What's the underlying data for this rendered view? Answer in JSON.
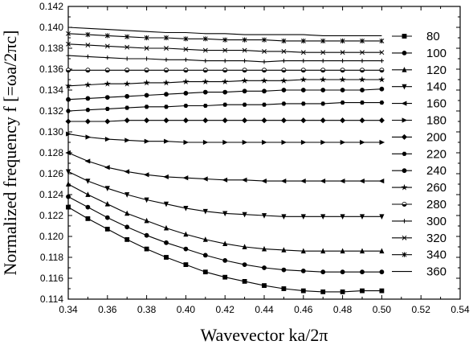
{
  "chart_data": {
    "type": "line",
    "xlabel": "Wavevector ka/2π",
    "ylabel": "Normalized frequency f [=ωa/2πc]",
    "xlim": [
      0.34,
      0.54
    ],
    "ylim": [
      0.114,
      0.142
    ],
    "xticks": [
      "0.34",
      "0.36",
      "0.38",
      "0.40",
      "0.42",
      "0.44",
      "0.46",
      "0.48",
      "0.50",
      "0.52",
      "0.54"
    ],
    "yticks": [
      "0.114",
      "0.116",
      "0.118",
      "0.120",
      "0.122",
      "0.124",
      "0.126",
      "0.128",
      "0.130",
      "0.132",
      "0.134",
      "0.136",
      "0.138",
      "0.140",
      "0.142"
    ],
    "legend_position": "right",
    "x": [
      0.34,
      0.35,
      0.36,
      0.37,
      0.38,
      0.39,
      0.4,
      0.41,
      0.42,
      0.43,
      0.44,
      0.45,
      0.46,
      0.47,
      0.48,
      0.49,
      0.5
    ],
    "series": [
      {
        "name": "80",
        "marker": "square",
        "values": [
          0.1228,
          0.1217,
          0.1207,
          0.1197,
          0.1188,
          0.118,
          0.1173,
          0.1166,
          0.1161,
          0.1157,
          0.1153,
          0.115,
          0.1148,
          0.1147,
          0.1147,
          0.1148,
          0.1148
        ]
      },
      {
        "name": "100",
        "marker": "circle",
        "values": [
          0.1238,
          0.1228,
          0.1218,
          0.1209,
          0.1201,
          0.1194,
          0.1188,
          0.1182,
          0.1177,
          0.1173,
          0.117,
          0.1168,
          0.1167,
          0.1166,
          0.1166,
          0.1166,
          0.1166
        ]
      },
      {
        "name": "120",
        "marker": "triangle-up",
        "values": [
          0.125,
          0.124,
          0.1231,
          0.1222,
          0.1215,
          0.1208,
          0.1202,
          0.1197,
          0.1193,
          0.119,
          0.1188,
          0.1187,
          0.1186,
          0.1186,
          0.1186,
          0.1186,
          0.1186
        ]
      },
      {
        "name": "140",
        "marker": "triangle-down",
        "values": [
          0.1262,
          0.1253,
          0.1246,
          0.124,
          0.1235,
          0.1231,
          0.1227,
          0.1224,
          0.1222,
          0.1221,
          0.122,
          0.1219,
          0.1219,
          0.1219,
          0.1219,
          0.1219,
          0.1219
        ]
      },
      {
        "name": "160",
        "marker": "triangle-left",
        "values": [
          0.128,
          0.1272,
          0.1266,
          0.1262,
          0.1259,
          0.1257,
          0.1256,
          0.1255,
          0.1254,
          0.1254,
          0.1253,
          0.1253,
          0.1253,
          0.1253,
          0.1253,
          0.1253,
          0.1253
        ]
      },
      {
        "name": "180",
        "marker": "triangle-right",
        "values": [
          0.1298,
          0.1295,
          0.1293,
          0.1292,
          0.1291,
          0.1291,
          0.129,
          0.129,
          0.129,
          0.129,
          0.129,
          0.129,
          0.129,
          0.129,
          0.129,
          0.129,
          0.129
        ]
      },
      {
        "name": "200",
        "marker": "diamond",
        "values": [
          0.131,
          0.131,
          0.131,
          0.1311,
          0.1311,
          0.1311,
          0.1311,
          0.1311,
          0.1311,
          0.1311,
          0.1311,
          0.1311,
          0.1311,
          0.1311,
          0.1311,
          0.1311,
          0.1311
        ]
      },
      {
        "name": "220",
        "marker": "hexagon",
        "values": [
          0.132,
          0.1321,
          0.1322,
          0.1323,
          0.1324,
          0.1324,
          0.1325,
          0.1325,
          0.1326,
          0.1326,
          0.1326,
          0.1327,
          0.1327,
          0.1327,
          0.1328,
          0.1328,
          0.1328
        ]
      },
      {
        "name": "240",
        "marker": "circle",
        "values": [
          0.1331,
          0.1332,
          0.1333,
          0.1334,
          0.1335,
          0.1336,
          0.1337,
          0.1338,
          0.1338,
          0.1339,
          0.1339,
          0.134,
          0.134,
          0.134,
          0.134,
          0.134,
          0.1341
        ]
      },
      {
        "name": "260",
        "marker": "star",
        "values": [
          0.1344,
          0.1345,
          0.1346,
          0.1346,
          0.1347,
          0.1347,
          0.1348,
          0.1348,
          0.1348,
          0.1349,
          0.1349,
          0.1349,
          0.135,
          0.135,
          0.135,
          0.135,
          0.135
        ]
      },
      {
        "name": "280",
        "marker": "half-circle",
        "values": [
          0.1359,
          0.1359,
          0.1359,
          0.1359,
          0.1359,
          0.1359,
          0.1359,
          0.1359,
          0.1359,
          0.1359,
          0.1359,
          0.1359,
          0.1359,
          0.1359,
          0.1359,
          0.1359,
          0.1359
        ]
      },
      {
        "name": "300",
        "marker": "plus",
        "values": [
          0.1373,
          0.1372,
          0.1371,
          0.137,
          0.137,
          0.1369,
          0.1369,
          0.1368,
          0.1368,
          0.1368,
          0.1367,
          0.1368,
          0.1368,
          0.1368,
          0.1368,
          0.1368,
          0.1368
        ]
      },
      {
        "name": "320",
        "marker": "cross",
        "values": [
          0.1384,
          0.1383,
          0.1382,
          0.1381,
          0.138,
          0.138,
          0.1379,
          0.1378,
          0.1378,
          0.1378,
          0.1377,
          0.1377,
          0.1376,
          0.1376,
          0.1376,
          0.1376,
          0.1376
        ]
      },
      {
        "name": "340",
        "marker": "asterisk",
        "values": [
          0.1394,
          0.1393,
          0.1392,
          0.1391,
          0.139,
          0.139,
          0.1389,
          0.1389,
          0.1388,
          0.1388,
          0.1388,
          0.1387,
          0.1387,
          0.1387,
          0.1387,
          0.1387,
          0.1387
        ]
      },
      {
        "name": "360",
        "marker": "none",
        "values": [
          0.14,
          0.1399,
          0.1398,
          0.1397,
          0.1396,
          0.1395,
          0.1395,
          0.1394,
          0.1394,
          0.1393,
          0.1393,
          0.1393,
          0.1393,
          0.1392,
          0.1392,
          0.1392,
          0.1392
        ]
      }
    ]
  }
}
